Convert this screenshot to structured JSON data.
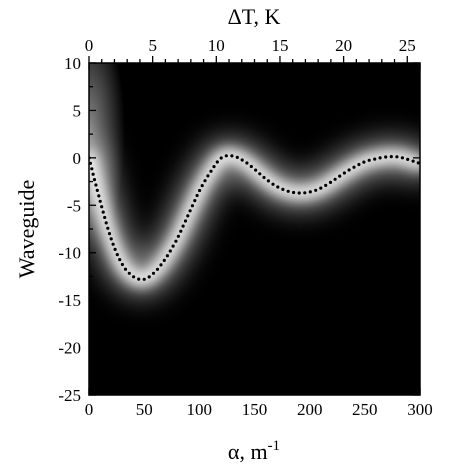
{
  "chart_data": {
    "type": "heatmap",
    "title": "",
    "xlabel": "α,  m",
    "xlabel_superscript": "-1",
    "ylabel": "Waveguide",
    "top_xlabel": "ΔT, K",
    "xlim": [
      0,
      300
    ],
    "ylim": [
      -25,
      10
    ],
    "top_xlim": [
      0,
      26
    ],
    "x_ticks": [
      0,
      50,
      100,
      150,
      200,
      250,
      300
    ],
    "y_ticks": [
      10,
      5,
      0,
      -5,
      -10,
      -15,
      -20,
      -25
    ],
    "top_x_ticks": [
      0,
      5,
      10,
      15,
      20,
      25
    ],
    "x_tick_labels": [
      "0",
      "50",
      "100",
      "150",
      "200",
      "250",
      "300"
    ],
    "y_tick_labels": [
      "10",
      "5",
      "0",
      "-5",
      "-10",
      "-15",
      "-20",
      "-25"
    ],
    "top_x_tick_labels": [
      "0",
      "5",
      "10",
      "15",
      "20",
      "25"
    ],
    "background_color": "#000000",
    "band_color": "#ffffff",
    "series": [
      {
        "style": "dotted",
        "color": "#000000",
        "x": [
          0,
          10,
          20,
          30,
          40,
          50,
          60,
          70,
          80,
          90,
          100,
          110,
          120,
          130,
          140,
          150,
          160,
          170,
          180,
          190,
          200,
          210,
          220,
          230,
          240,
          250,
          260,
          270,
          280,
          290,
          300
        ],
        "y": [
          0,
          -4.5,
          -8.5,
          -11.2,
          -12.5,
          -12.8,
          -12,
          -10.5,
          -8.5,
          -6,
          -3.5,
          -1.5,
          0,
          0.2,
          -0.3,
          -1.2,
          -2.2,
          -3,
          -3.5,
          -3.7,
          -3.6,
          -3.2,
          -2.5,
          -1.7,
          -1,
          -0.4,
          -0.1,
          0.1,
          0.1,
          -0.2,
          -0.6
        ]
      }
    ]
  }
}
